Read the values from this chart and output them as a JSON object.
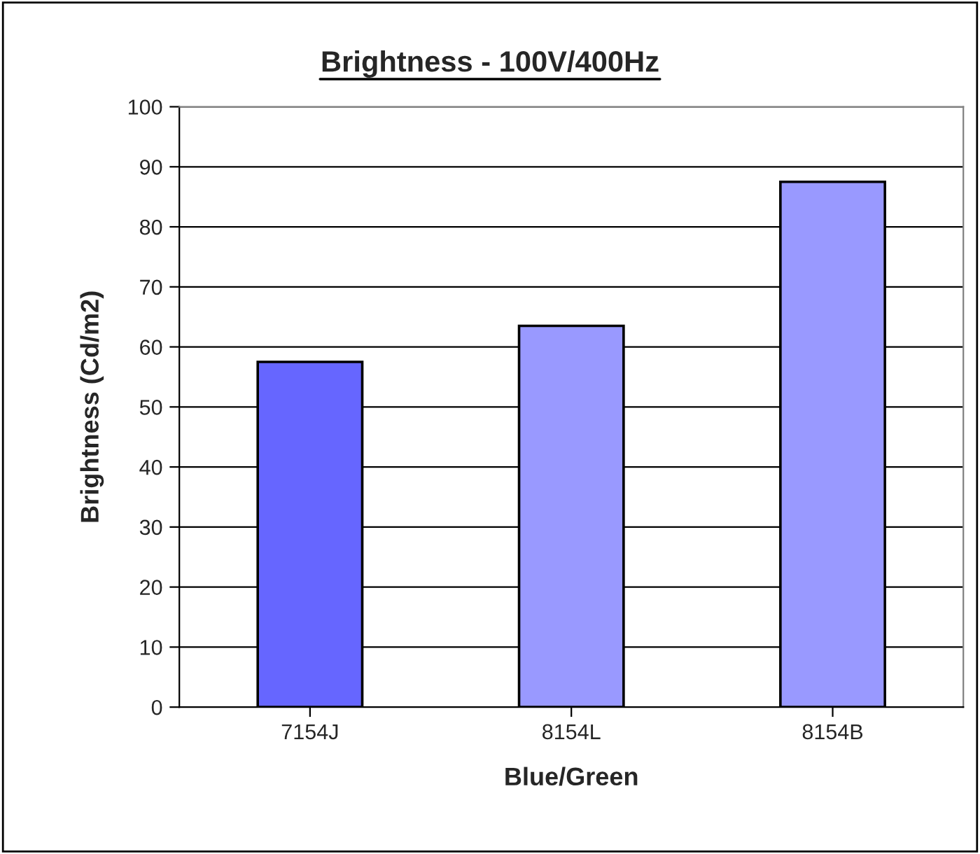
{
  "chart_data": {
    "type": "bar",
    "title": "Brightness - 100V/400Hz",
    "xlabel": "Blue/Green",
    "ylabel": "Brightness (Cd/m2)",
    "categories": [
      "7154J",
      "8154L",
      "8154B"
    ],
    "values": [
      57.5,
      63.5,
      87.5
    ],
    "colors": [
      "#6666ff",
      "#9999ff",
      "#9999ff"
    ],
    "ylim": [
      0,
      100
    ],
    "yticks": [
      0,
      10,
      20,
      30,
      40,
      50,
      60,
      70,
      80,
      90,
      100
    ],
    "grid": "y",
    "legend": false
  }
}
